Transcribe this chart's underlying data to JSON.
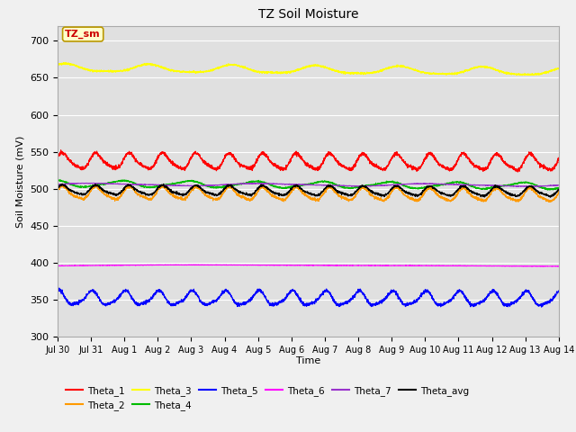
{
  "title": "TZ Soil Moisture",
  "xlabel": "Time",
  "ylabel": "Soil Moisture (mV)",
  "ylim": [
    300,
    720
  ],
  "yticks": [
    300,
    350,
    400,
    450,
    500,
    550,
    600,
    650,
    700
  ],
  "bg_color": "#e0e0e0",
  "fig_bg": "#f0f0f0",
  "series_order": [
    "Theta_1",
    "Theta_2",
    "Theta_3",
    "Theta_4",
    "Theta_5",
    "Theta_6",
    "Theta_7",
    "Theta_avg"
  ],
  "series": {
    "Theta_1": {
      "color": "#ff0000",
      "base": 537,
      "amp": 10,
      "freq": 1.0,
      "phase": 0.5,
      "trend": -2.0
    },
    "Theta_2": {
      "color": "#ff9900",
      "base": 494,
      "amp": 8,
      "freq": 1.0,
      "phase": 0.5,
      "trend": -3.0
    },
    "Theta_3": {
      "color": "#ffff00",
      "base": 663,
      "amp": 5,
      "freq": 0.4,
      "phase": 1.0,
      "trend": -5.0
    },
    "Theta_4": {
      "color": "#00bb00",
      "base": 507,
      "amp": 4,
      "freq": 0.5,
      "phase": 2.0,
      "trend": -3.0
    },
    "Theta_5": {
      "color": "#0000ff",
      "base": 352,
      "amp": 9,
      "freq": 1.0,
      "phase": 1.5,
      "trend": -1.0
    },
    "Theta_6": {
      "color": "#ff00ff",
      "base": 396,
      "amp": 1,
      "freq": 0.05,
      "phase": 0.0,
      "trend": 0.5
    },
    "Theta_7": {
      "color": "#9933cc",
      "base": 506,
      "amp": 1.5,
      "freq": 0.2,
      "phase": 0.0,
      "trend": -1.0
    },
    "Theta_avg": {
      "color": "#000000",
      "base": 498,
      "amp": 6,
      "freq": 1.0,
      "phase": 0.5,
      "trend": -2.0
    }
  },
  "n_points": 3360,
  "x_days": 15,
  "xtick_labels": [
    "Jul 30",
    "Jul 31",
    "Aug 1",
    "Aug 2",
    "Aug 3",
    "Aug 4",
    "Aug 5",
    "Aug 6",
    "Aug 7",
    "Aug 8",
    "Aug 9",
    "Aug 10",
    "Aug 11",
    "Aug 12",
    "Aug 13",
    "Aug 14"
  ],
  "xtick_positions": [
    0,
    1,
    2,
    3,
    4,
    5,
    6,
    7,
    8,
    9,
    10,
    11,
    12,
    13,
    14,
    15
  ],
  "legend_text": "TZ_sm",
  "legend_bg": "#ffffcc",
  "legend_border": "#bb9900",
  "legend_text_color": "#cc0000",
  "legend_entries": [
    {
      "label": "Theta_1",
      "color": "#ff0000"
    },
    {
      "label": "Theta_2",
      "color": "#ff9900"
    },
    {
      "label": "Theta_3",
      "color": "#ffff00"
    },
    {
      "label": "Theta_4",
      "color": "#00bb00"
    },
    {
      "label": "Theta_5",
      "color": "#0000ff"
    },
    {
      "label": "Theta_6",
      "color": "#ff00ff"
    },
    {
      "label": "Theta_7",
      "color": "#9933cc"
    },
    {
      "label": "Theta_avg",
      "color": "#000000"
    }
  ]
}
